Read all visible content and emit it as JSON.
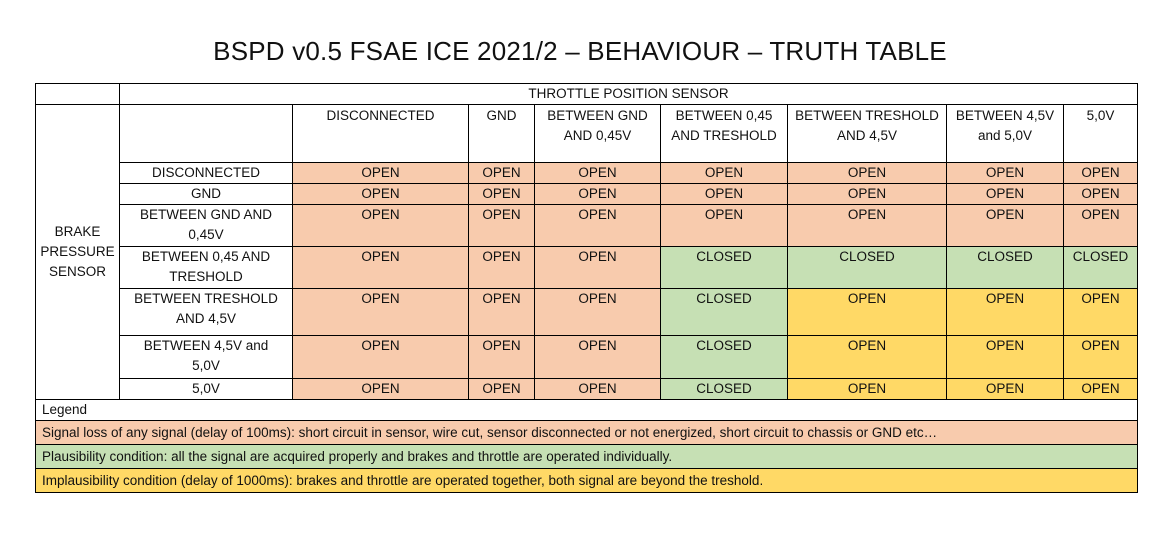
{
  "title": "BSPD v0.5 FSAE ICE 2021/2 – BEHAVIOUR – TRUTH TABLE",
  "throttle_header": "THROTTLE POSITION SENSOR",
  "brake_header": [
    "BRAKE",
    "PRESSURE",
    "SENSOR"
  ],
  "columns": [
    [
      "DISCONNECTED"
    ],
    [
      "GND"
    ],
    [
      "BETWEEN GND",
      "AND 0,45V"
    ],
    [
      "BETWEEN 0,45",
      "AND TRESHOLD"
    ],
    [
      "BETWEEN TRESHOLD",
      "AND 4,5V"
    ],
    [
      "BETWEEN 4,5V",
      "and 5,0V"
    ],
    [
      "5,0V"
    ]
  ],
  "rows": [
    {
      "label": [
        "DISCONNECTED"
      ],
      "cells": [
        "OPEN",
        "OPEN",
        "OPEN",
        "OPEN",
        "OPEN",
        "OPEN",
        "OPEN"
      ],
      "colors": [
        "pk",
        "pk",
        "pk",
        "pk",
        "pk",
        "pk",
        "pk"
      ]
    },
    {
      "label": [
        "GND"
      ],
      "cells": [
        "OPEN",
        "OPEN",
        "OPEN",
        "OPEN",
        "OPEN",
        "OPEN",
        "OPEN"
      ],
      "colors": [
        "pk",
        "pk",
        "pk",
        "pk",
        "pk",
        "pk",
        "pk"
      ]
    },
    {
      "label": [
        "BETWEEN GND AND",
        "0,45V"
      ],
      "cells": [
        "OPEN",
        "OPEN",
        "OPEN",
        "OPEN",
        "OPEN",
        "OPEN",
        "OPEN"
      ],
      "colors": [
        "pk",
        "pk",
        "pk",
        "pk",
        "pk",
        "pk",
        "pk"
      ]
    },
    {
      "label": [
        "BETWEEN 0,45 AND",
        "TRESHOLD"
      ],
      "cells": [
        "OPEN",
        "OPEN",
        "OPEN",
        "CLOSED",
        "CLOSED",
        "CLOSED",
        "CLOSED"
      ],
      "colors": [
        "pk",
        "pk",
        "pk",
        "gr",
        "gr",
        "gr",
        "gr"
      ]
    },
    {
      "label": [
        "BETWEEN TRESHOLD",
        "AND 4,5V"
      ],
      "cells": [
        "OPEN",
        "OPEN",
        "OPEN",
        "CLOSED",
        "OPEN",
        "OPEN",
        "OPEN"
      ],
      "colors": [
        "pk",
        "pk",
        "pk",
        "gr",
        "ye",
        "ye",
        "ye"
      ]
    },
    {
      "label": [
        "BETWEEN 4,5V and",
        "5,0V"
      ],
      "cells": [
        "OPEN",
        "OPEN",
        "OPEN",
        "CLOSED",
        "OPEN",
        "OPEN",
        "OPEN"
      ],
      "colors": [
        "pk",
        "pk",
        "pk",
        "gr",
        "ye",
        "ye",
        "ye"
      ]
    },
    {
      "label": [
        "5,0V"
      ],
      "cells": [
        "OPEN",
        "OPEN",
        "OPEN",
        "CLOSED",
        "OPEN",
        "OPEN",
        "OPEN"
      ],
      "colors": [
        "pk",
        "pk",
        "pk",
        "gr",
        "ye",
        "ye",
        "ye"
      ]
    }
  ],
  "legend": {
    "title": "Legend",
    "items": [
      {
        "text": "Signal loss of any signal (delay of 100ms): short circuit in sensor, wire cut, sensor disconnected or not energized, short circuit to chassis or GND etc…",
        "color": "#f8cbad"
      },
      {
        "text": "Plausibility condition: all the signal are acquired properly and brakes and throttle are operated individually.",
        "color": "#c6e0b4"
      },
      {
        "text": "Implausibility condition (delay of 1000ms): brakes and throttle are operated together, both signal are beyond the treshold.",
        "color": "#ffd966"
      }
    ]
  }
}
